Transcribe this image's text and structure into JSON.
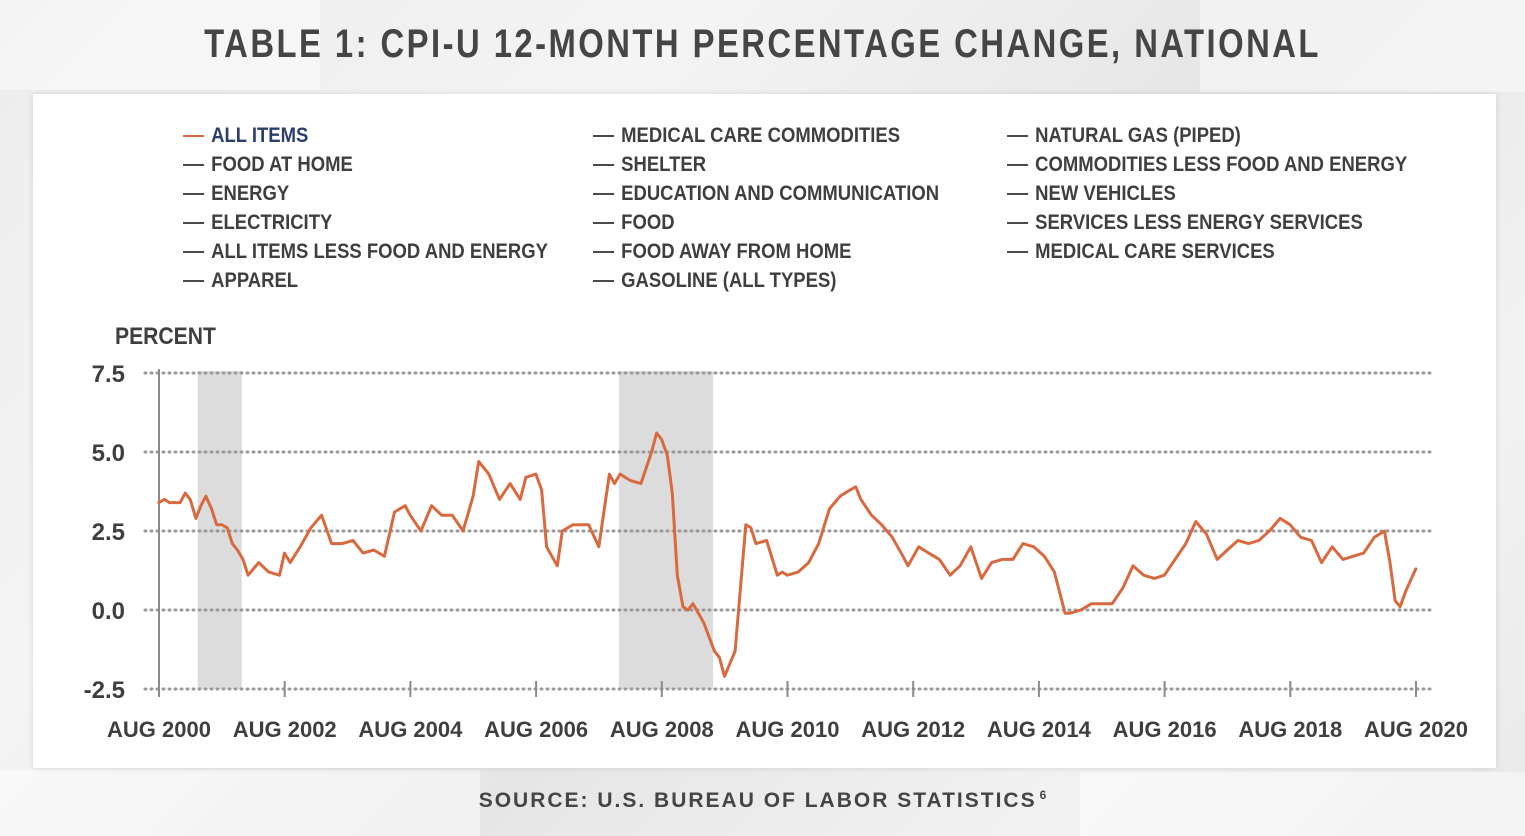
{
  "title": "TABLE 1: CPI-U 12-MONTH PERCENTAGE CHANGE, NATIONAL",
  "source": {
    "text": "SOURCE: U.S. BUREAU OF LABOR STATISTICS",
    "footnote": "6"
  },
  "legend": {
    "columns": [
      [
        "ALL ITEMS",
        "FOOD AT HOME",
        "ENERGY",
        "ELECTRICITY",
        "ALL ITEMS LESS FOOD AND ENERGY",
        "APPAREL"
      ],
      [
        "MEDICAL CARE COMMODITIES",
        "SHELTER",
        "EDUCATION AND COMMUNICATION",
        "FOOD",
        "FOOD AWAY FROM HOME",
        "GASOLINE (ALL TYPES)"
      ],
      [
        "NATURAL GAS (PIPED)",
        "COMMODITIES LESS FOOD AND ENERGY",
        "NEW VEHICLES",
        "SERVICES LESS ENERGY SERVICES",
        "MEDICAL CARE SERVICES"
      ]
    ],
    "active": "ALL ITEMS"
  },
  "chart_data": {
    "type": "line",
    "title": "TABLE 1: CPI-U 12-MONTH PERCENTAGE CHANGE, NATIONAL",
    "ylabel": "PERCENT",
    "xlabel": "",
    "ylim": [
      -2.5,
      7.5
    ],
    "yticks": [
      7.5,
      5.0,
      2.5,
      0.0,
      -2.5
    ],
    "ytick_labels": [
      "7.5",
      "5.0",
      "2.5",
      "0.0",
      "-2.5"
    ],
    "xlim": [
      2000.583,
      2020.583
    ],
    "xticks": [
      2000.583,
      2002.583,
      2004.583,
      2006.583,
      2008.583,
      2010.583,
      2012.583,
      2014.583,
      2016.583,
      2018.583,
      2020.583
    ],
    "xtick_labels": [
      "AUG 2000",
      "AUG 2002",
      "AUG 2004",
      "AUG 2006",
      "AUG 2008",
      "AUG 2010",
      "AUG 2012",
      "AUG 2014",
      "AUG 2016",
      "AUG 2018",
      "AUG 2020"
    ],
    "grid": "horizontal-dotted",
    "recessions": [
      [
        2001.2,
        2001.9
      ],
      [
        2007.9,
        2009.4
      ]
    ],
    "series_color": "#d9693e",
    "series": [
      {
        "name": "ALL ITEMS",
        "x": [
          2000.58,
          2000.67,
          2000.75,
          2000.83,
          2000.92,
          2001.0,
          2001.08,
          2001.17,
          2001.25,
          2001.33,
          2001.42,
          2001.5,
          2001.58,
          2001.67,
          2001.75,
          2001.83,
          2001.92,
          2002.0,
          2002.17,
          2002.33,
          2002.5,
          2002.58,
          2002.67,
          2002.83,
          2003.0,
          2003.17,
          2003.33,
          2003.5,
          2003.67,
          2003.83,
          2004.0,
          2004.17,
          2004.33,
          2004.5,
          2004.58,
          2004.75,
          2004.92,
          2005.08,
          2005.25,
          2005.42,
          2005.58,
          2005.67,
          2005.83,
          2006.0,
          2006.17,
          2006.33,
          2006.42,
          2006.58,
          2006.67,
          2006.75,
          2006.92,
          2007.0,
          2007.17,
          2007.33,
          2007.42,
          2007.58,
          2007.75,
          2007.83,
          2007.92,
          2008.08,
          2008.25,
          2008.42,
          2008.5,
          2008.58,
          2008.67,
          2008.75,
          2008.83,
          2008.92,
          2009.0,
          2009.08,
          2009.25,
          2009.42,
          2009.5,
          2009.58,
          2009.75,
          2009.92,
          2010.0,
          2010.08,
          2010.25,
          2010.42,
          2010.5,
          2010.58,
          2010.75,
          2010.92,
          2011.08,
          2011.25,
          2011.42,
          2011.58,
          2011.67,
          2011.75,
          2011.92,
          2012.08,
          2012.25,
          2012.42,
          2012.5,
          2012.67,
          2012.83,
          2013.0,
          2013.17,
          2013.33,
          2013.5,
          2013.67,
          2013.83,
          2014.0,
          2014.17,
          2014.33,
          2014.5,
          2014.67,
          2014.83,
          2015.0,
          2015.08,
          2015.25,
          2015.42,
          2015.58,
          2015.75,
          2015.92,
          2016.08,
          2016.25,
          2016.42,
          2016.58,
          2016.75,
          2016.92,
          2017.08,
          2017.25,
          2017.42,
          2017.58,
          2017.75,
          2017.92,
          2018.08,
          2018.25,
          2018.42,
          2018.58,
          2018.75,
          2018.92,
          2019.08,
          2019.25,
          2019.42,
          2019.58,
          2019.75,
          2019.92,
          2020.08,
          2020.17,
          2020.25,
          2020.33,
          2020.42,
          2020.58
        ],
        "values": [
          3.4,
          3.5,
          3.4,
          3.4,
          3.4,
          3.7,
          3.5,
          2.9,
          3.3,
          3.6,
          3.2,
          2.7,
          2.7,
          2.6,
          2.1,
          1.9,
          1.6,
          1.1,
          1.5,
          1.2,
          1.1,
          1.8,
          1.5,
          2.0,
          2.6,
          3.0,
          2.1,
          2.1,
          2.2,
          1.8,
          1.9,
          1.7,
          3.1,
          3.3,
          3.0,
          2.5,
          3.3,
          3.0,
          3.0,
          2.5,
          3.6,
          4.7,
          4.3,
          3.5,
          4.0,
          3.5,
          4.2,
          4.3,
          3.8,
          2.0,
          1.4,
          2.5,
          2.7,
          2.7,
          2.7,
          2.0,
          4.3,
          4.0,
          4.3,
          4.1,
          4.0,
          5.0,
          5.6,
          5.4,
          4.9,
          3.7,
          1.1,
          0.1,
          0.0,
          0.2,
          -0.4,
          -1.3,
          -1.5,
          -2.1,
          -1.3,
          2.7,
          2.6,
          2.1,
          2.2,
          1.1,
          1.2,
          1.1,
          1.2,
          1.5,
          2.1,
          3.2,
          3.6,
          3.8,
          3.9,
          3.5,
          3.0,
          2.7,
          2.3,
          1.7,
          1.4,
          2.0,
          1.8,
          1.6,
          1.1,
          1.4,
          2.0,
          1.0,
          1.5,
          1.6,
          1.6,
          2.1,
          2.0,
          1.7,
          1.2,
          -0.1,
          -0.1,
          0.0,
          0.2,
          0.2,
          0.2,
          0.7,
          1.4,
          1.1,
          1.0,
          1.1,
          1.6,
          2.1,
          2.8,
          2.4,
          1.6,
          1.9,
          2.2,
          2.1,
          2.2,
          2.5,
          2.9,
          2.7,
          2.3,
          2.2,
          1.5,
          2.0,
          1.6,
          1.7,
          1.8,
          2.3,
          2.5,
          1.5,
          0.3,
          0.1,
          0.6,
          1.3
        ]
      }
    ]
  }
}
